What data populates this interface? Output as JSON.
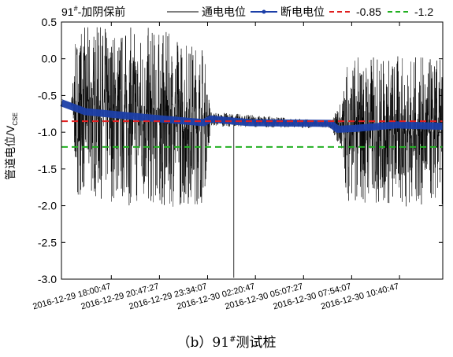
{
  "caption": {
    "prefix": "（b）91",
    "sup": "#",
    "suffix": "测试桩"
  },
  "chart_data": {
    "type": "line",
    "title_main": "91",
    "title_sup": "#",
    "title_rest": "-加阴保前",
    "ylabel_main": "管道电位/V",
    "ylabel_sub": "CSE",
    "xlabel": "",
    "ylim": [
      -3.0,
      0.5
    ],
    "yticks": [
      "0.5",
      "0.0",
      "-0.5",
      "-1.0",
      "-1.5",
      "-2.0",
      "-2.5",
      "-3.0"
    ],
    "yticks_values": [
      0.5,
      0.0,
      -0.5,
      -1.0,
      -1.5,
      -2.0,
      -2.5,
      -3.0
    ],
    "xlim": [
      "2016-12-29 15:07",
      "2016-12-30 13:10"
    ],
    "xticks": [
      "2016-12-29 18:00:47",
      "2016-12-29 20:47:27",
      "2016-12-29 23:34:07",
      "2016-12-30 02:20:47",
      "2016-12-30 05:07:27",
      "2016-12-30 07:54:07",
      "2016-12-30 10:40:47"
    ],
    "legend_position": "top",
    "series": [
      {
        "name": "通电电位",
        "color": "#000000",
        "style": "thin-line",
        "envelope_time": [
          "2016-12-29 15:07",
          "2016-12-29 15:40",
          "2016-12-29 16:00",
          "2016-12-29 20:00",
          "2016-12-29 23:20",
          "2016-12-29 23:45",
          "2016-12-30 06:45",
          "2016-12-30 07:20",
          "2016-12-30 07:40",
          "2016-12-30 10:00",
          "2016-12-30 13:10"
        ],
        "envelope_mid": [
          -0.55,
          -0.62,
          -0.7,
          -0.8,
          -0.88,
          -0.82,
          -0.9,
          -0.92,
          -0.95,
          -0.98,
          -1.0
        ],
        "envelope_amp": [
          0.0,
          0.0,
          1.15,
          1.25,
          1.1,
          0.1,
          0.05,
          0.4,
          1.0,
          1.05,
          1.0
        ],
        "spike_time": "2016-12-30 01:05",
        "spike_min": -2.98
      },
      {
        "name": "断电电位",
        "color": "#1c3fa8",
        "style": "thick-band",
        "time": [
          "2016-12-29 15:07",
          "2016-12-29 16:30",
          "2016-12-29 20:00",
          "2016-12-29 23:20",
          "2016-12-29 23:45",
          "2016-12-30 02:00",
          "2016-12-30 06:40",
          "2016-12-30 07:05",
          "2016-12-30 08:00",
          "2016-12-30 10:30",
          "2016-12-30 13:10"
        ],
        "values": [
          -0.6,
          -0.72,
          -0.8,
          -0.87,
          -0.82,
          -0.87,
          -0.88,
          -0.96,
          -0.95,
          -0.9,
          -0.92
        ]
      },
      {
        "name": "-0.85",
        "color": "#e02020",
        "style": "dashed",
        "constant": -0.85
      },
      {
        "name": "-1.2",
        "color": "#22b022",
        "style": "dashed",
        "constant": -1.2
      }
    ]
  }
}
